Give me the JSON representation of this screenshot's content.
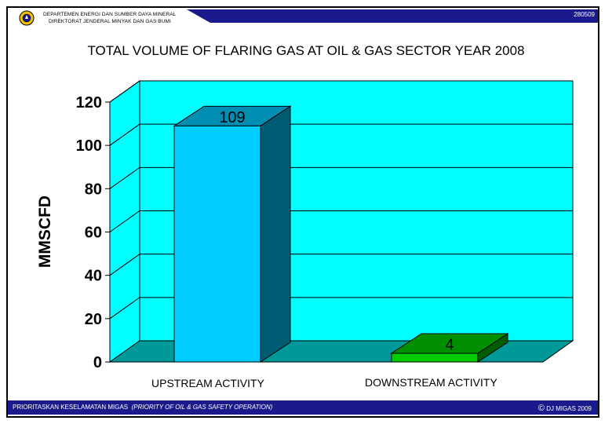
{
  "header": {
    "org_line1": "DEPARTEMEN ENERGI DAN SUMBER DAYA MINERAL",
    "org_line2": "DIREKTORAT JENDERAL MINYAK DAN GAS BUMI",
    "code": "280509",
    "logo_icon": "ministry-emblem-icon"
  },
  "footer": {
    "left_text": "PRIORITASKAN KESELAMATAN MIGAS",
    "left_italic": "(PRIORITY OF OIL & GAS SAFETY OPERATION)",
    "copyright_symbol": "©",
    "right_text": "DJ MIGAS 2009"
  },
  "chart_data": {
    "type": "bar",
    "title": "TOTAL VOLUME OF FLARING GAS AT OIL & GAS SECTOR YEAR 2008",
    "ylabel": "MMSCFD",
    "xlabel": "",
    "categories": [
      "UPSTREAM ACTIVITY",
      "DOWNSTREAM  ACTIVITY"
    ],
    "values": [
      109,
      4
    ],
    "data_labels": [
      "109",
      "4"
    ],
    "ylim": [
      0,
      120
    ],
    "yticks": [
      0,
      20,
      40,
      60,
      80,
      100,
      120
    ],
    "grid": true,
    "bar_colors": [
      "#00ccff",
      "#00cc00"
    ],
    "plot_background": "#00ffff",
    "floor_color": "#009999"
  }
}
